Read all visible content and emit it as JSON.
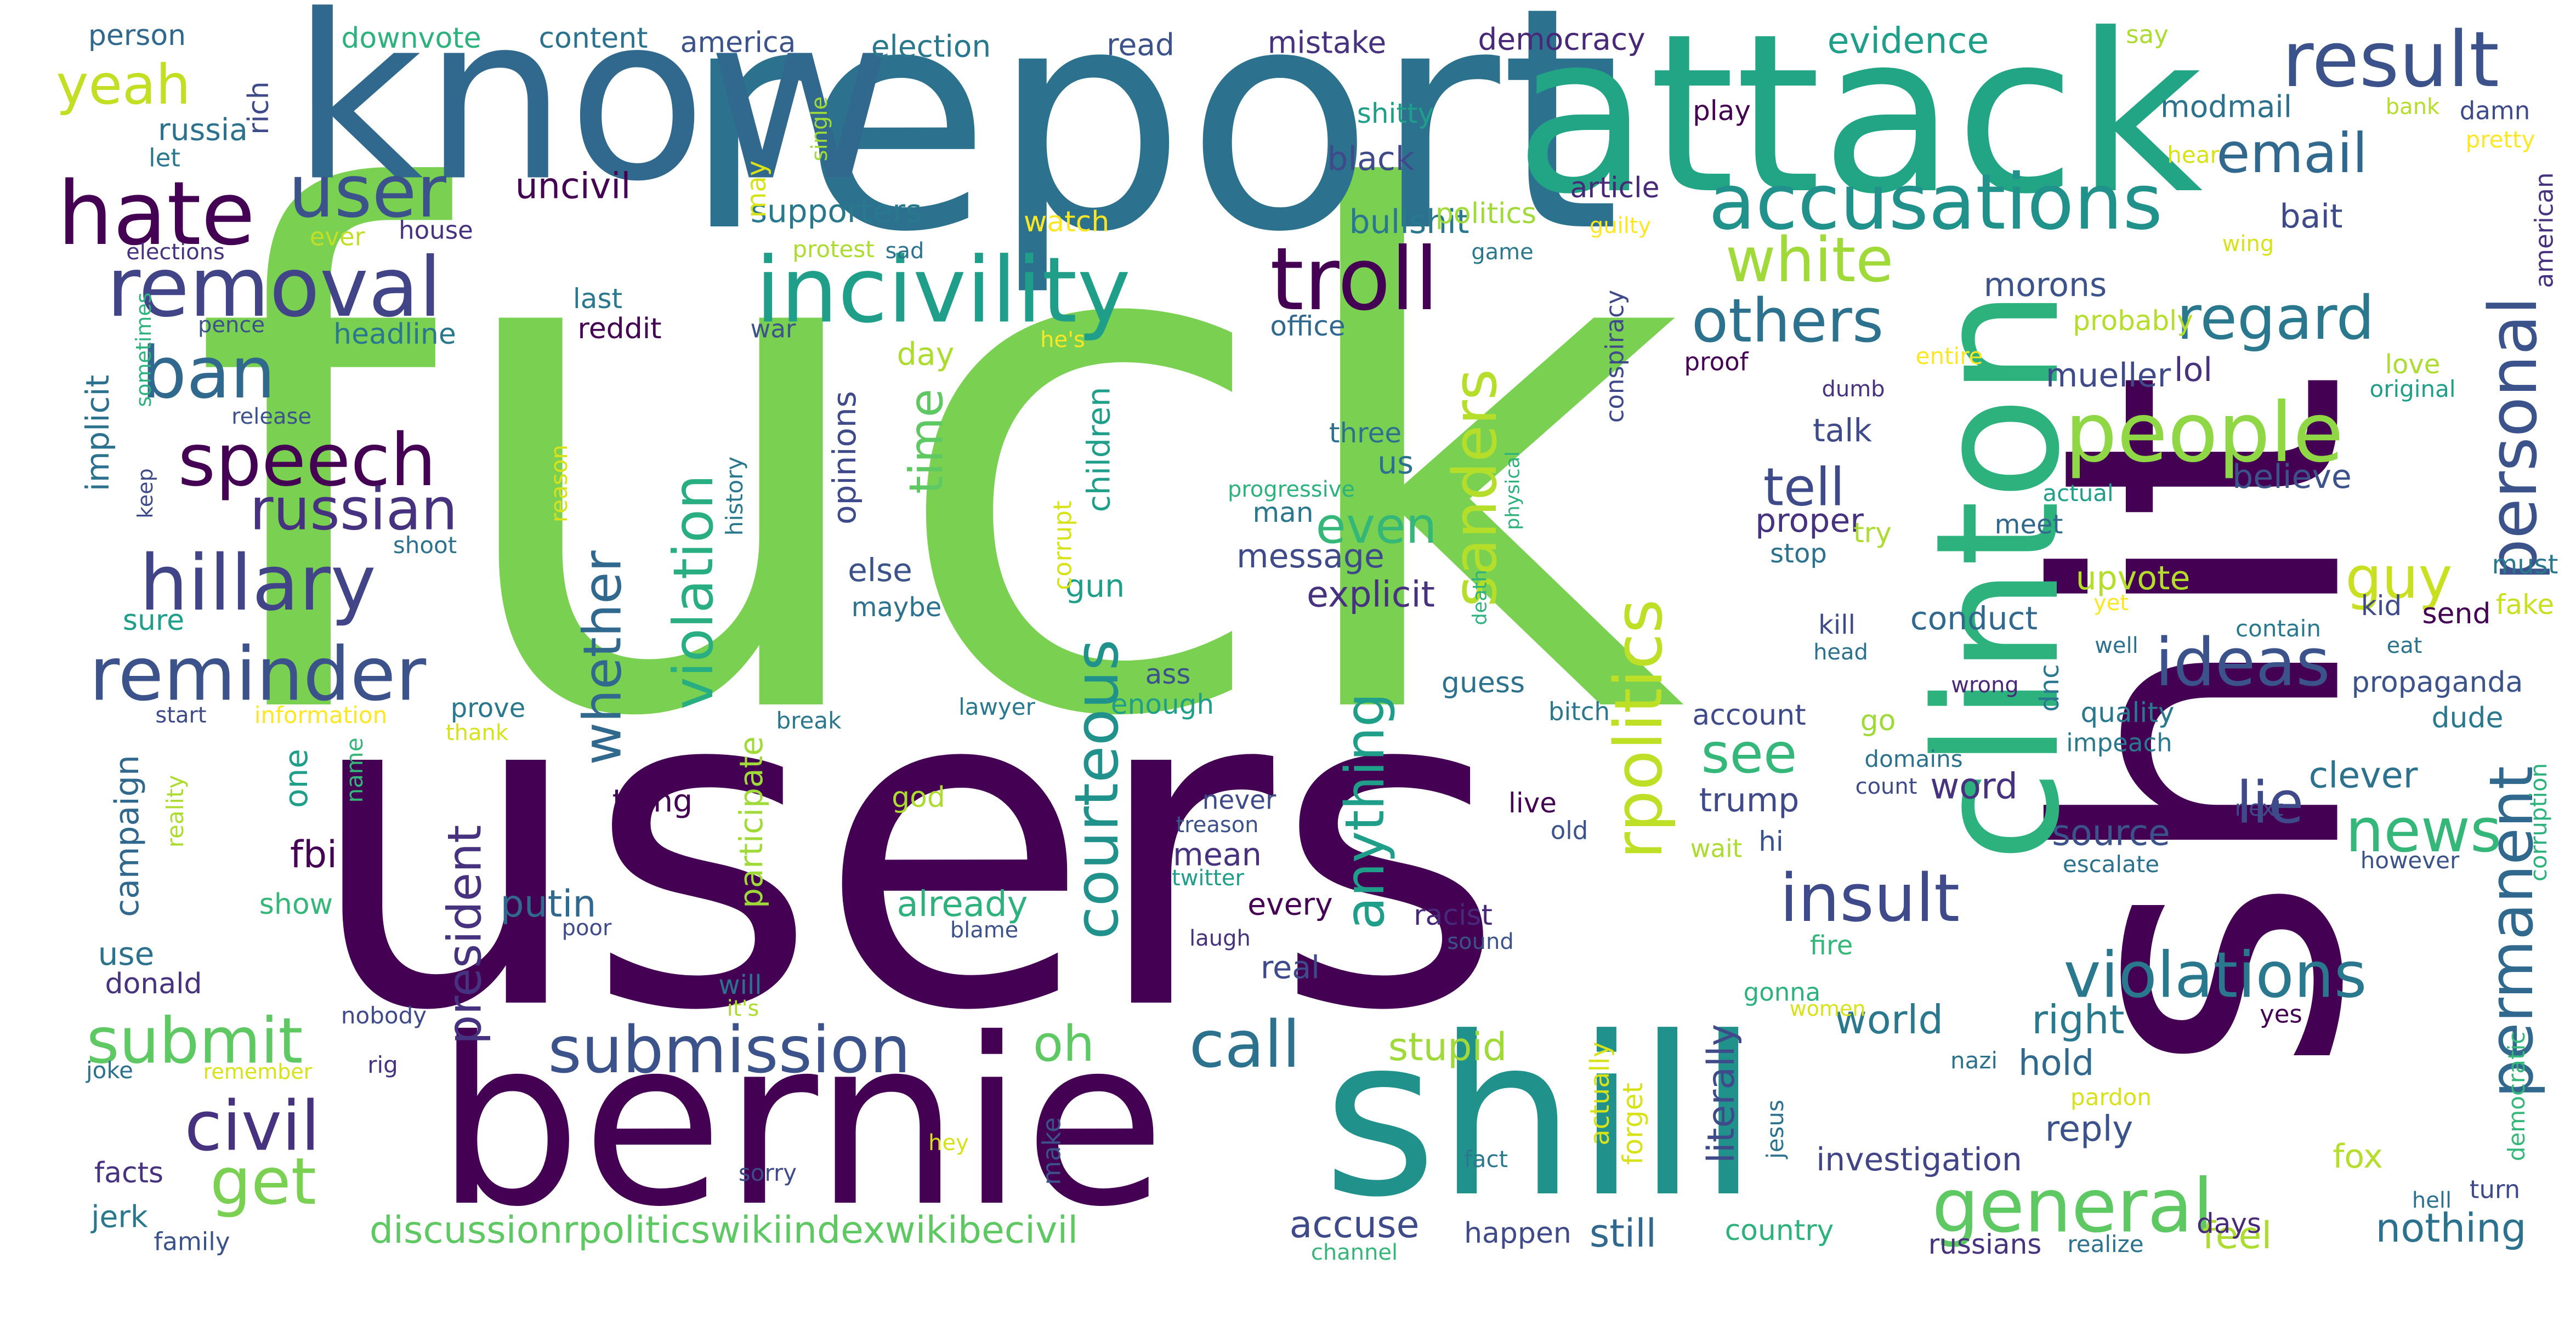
{
  "words": [
    {
      "text": "fuck",
      "color": "#7ad151"
    },
    {
      "text": "users",
      "color": "#440154"
    },
    {
      "text": "shit",
      "color": "#440154"
    },
    {
      "text": "report",
      "color": "#2c728e"
    },
    {
      "text": "know",
      "color": "#31688e"
    },
    {
      "text": "attack",
      "color": "#21a585"
    },
    {
      "text": "clinton",
      "color": "#2db27d"
    },
    {
      "text": "bernie",
      "color": "#440154"
    },
    {
      "text": "shill",
      "color": "#21918c"
    },
    {
      "text": "incivility",
      "color": "#1f9e89"
    },
    {
      "text": "troll",
      "color": "#440154"
    },
    {
      "text": "accusations",
      "color": "#21918c"
    },
    {
      "text": "result",
      "color": "#3b528b"
    },
    {
      "text": "removal",
      "color": "#414487"
    },
    {
      "text": "hate",
      "color": "#440154"
    },
    {
      "text": "user",
      "color": "#3b528b"
    },
    {
      "text": "ban",
      "color": "#31688e"
    },
    {
      "text": "speech",
      "color": "#440154"
    },
    {
      "text": "hillary",
      "color": "#414487"
    },
    {
      "text": "reminder",
      "color": "#3b528b"
    },
    {
      "text": "russian",
      "color": "#46327e"
    },
    {
      "text": "yeah",
      "color": "#c2df23"
    },
    {
      "text": "people",
      "color": "#8fd744"
    },
    {
      "text": "personal",
      "color": "#3b528b"
    },
    {
      "text": "regard",
      "color": "#2a788e"
    },
    {
      "text": "email",
      "color": "#31688e"
    },
    {
      "text": "white",
      "color": "#a0da39"
    },
    {
      "text": "others",
      "color": "#2c728e"
    },
    {
      "text": "sanders",
      "color": "#b5de2b"
    },
    {
      "text": "courteous",
      "color": "#21918c"
    },
    {
      "text": "violation",
      "color": "#28ae80"
    },
    {
      "text": "whether",
      "color": "#31688e"
    },
    {
      "text": "submission",
      "color": "#3b528b"
    },
    {
      "text": "submit",
      "color": "#5ec962"
    },
    {
      "text": "civil",
      "color": "#46327e"
    },
    {
      "text": "get",
      "color": "#7ad151"
    },
    {
      "text": "call",
      "color": "#2c728e"
    },
    {
      "text": "oh",
      "color": "#5ec962"
    },
    {
      "text": "insult",
      "color": "#3e4a89"
    },
    {
      "text": "violations",
      "color": "#2a788e"
    },
    {
      "text": "general",
      "color": "#5ec962"
    },
    {
      "text": "news",
      "color": "#35b779"
    },
    {
      "text": "ideas",
      "color": "#3b528b"
    },
    {
      "text": "guy",
      "color": "#c8e020"
    },
    {
      "text": "permanent",
      "color": "#31688e"
    },
    {
      "text": "rpolitics",
      "color": "#bddf26"
    },
    {
      "text": "lie",
      "color": "#3e4a89"
    },
    {
      "text": "see",
      "color": "#35b779"
    },
    {
      "text": "tell",
      "color": "#3e4a89"
    },
    {
      "text": "even",
      "color": "#35b779"
    },
    {
      "text": "anything",
      "color": "#1f9e89"
    },
    {
      "text": "president",
      "color": "#46327e"
    },
    {
      "text": "time",
      "color": "#5ec962"
    },
    {
      "text": "discussionrpoliticswikiindexwikibecivil",
      "color": "#5ec962"
    },
    {
      "text": "accuse",
      "color": "#3e4a89"
    },
    {
      "text": "stupid",
      "color": "#a0da39"
    },
    {
      "text": "still",
      "color": "#31688e"
    },
    {
      "text": "world",
      "color": "#2a788e"
    },
    {
      "text": "right",
      "color": "#2a788e"
    },
    {
      "text": "nothing",
      "color": "#2c728e"
    },
    {
      "text": "feel",
      "color": "#addc30"
    },
    {
      "text": "fox",
      "color": "#b5de2b"
    },
    {
      "text": "reply",
      "color": "#3b528b"
    },
    {
      "text": "investigation",
      "color": "#414487"
    },
    {
      "text": "hold",
      "color": "#31688e"
    },
    {
      "text": "literally",
      "color": "#3e4a89"
    },
    {
      "text": "putin",
      "color": "#31688e"
    },
    {
      "text": "fbi",
      "color": "#440154"
    },
    {
      "text": "already",
      "color": "#2db27d"
    },
    {
      "text": "every",
      "color": "#440154"
    },
    {
      "text": "message",
      "color": "#3e4a89"
    },
    {
      "text": "explicit",
      "color": "#46327e"
    },
    {
      "text": "trump",
      "color": "#3e4a89"
    },
    {
      "text": "source",
      "color": "#3b528b"
    },
    {
      "text": "word",
      "color": "#46327e"
    },
    {
      "text": "clever",
      "color": "#2c728e"
    },
    {
      "text": "conduct",
      "color": "#31688e"
    },
    {
      "text": "upvote",
      "color": "#b5de2b"
    },
    {
      "text": "believe",
      "color": "#3b528b"
    },
    {
      "text": "proper",
      "color": "#46327e"
    },
    {
      "text": "talk",
      "color": "#3e4a89"
    },
    {
      "text": "mueller",
      "color": "#3e4a89"
    },
    {
      "text": "lol",
      "color": "#46327e"
    },
    {
      "text": "morons",
      "color": "#3b528b"
    },
    {
      "text": "bait",
      "color": "#3e4a89"
    },
    {
      "text": "modmail",
      "color": "#2c728e"
    },
    {
      "text": "evidence",
      "color": "#1f9e89"
    },
    {
      "text": "bullshit",
      "color": "#2a788e"
    },
    {
      "text": "black",
      "color": "#3e4a89"
    },
    {
      "text": "supporters",
      "color": "#2a788e"
    },
    {
      "text": "uncivil",
      "color": "#440154"
    },
    {
      "text": "russia",
      "color": "#2c728e"
    },
    {
      "text": "implicit",
      "color": "#2c728e"
    },
    {
      "text": "campaign",
      "color": "#31688e"
    },
    {
      "text": "jerk",
      "color": "#2a788e"
    },
    {
      "text": "facts",
      "color": "#46327e"
    },
    {
      "text": "use",
      "color": "#2c728e"
    },
    {
      "text": "donald",
      "color": "#46327e"
    },
    {
      "text": "sure",
      "color": "#1f9e89"
    },
    {
      "text": "show",
      "color": "#35b779"
    },
    {
      "text": "one",
      "color": "#1f9e89"
    },
    {
      "text": "thing",
      "color": "#440154"
    },
    {
      "text": "opinions",
      "color": "#3e4a89"
    },
    {
      "text": "else",
      "color": "#3b528b"
    },
    {
      "text": "maybe",
      "color": "#2c728e"
    },
    {
      "text": "day",
      "color": "#addc30"
    },
    {
      "text": "headline",
      "color": "#2a788e"
    },
    {
      "text": "reddit",
      "color": "#440154"
    },
    {
      "text": "last",
      "color": "#2a788e"
    },
    {
      "text": "us",
      "color": "#2c728e"
    },
    {
      "text": "three",
      "color": "#2c728e"
    },
    {
      "text": "guess",
      "color": "#2c728e"
    },
    {
      "text": "racist",
      "color": "#482878"
    },
    {
      "text": "real",
      "color": "#3e4a89"
    },
    {
      "text": "god",
      "color": "#addc30"
    },
    {
      "text": "mean",
      "color": "#46327e"
    },
    {
      "text": "make",
      "color": "#3b528b"
    },
    {
      "text": "enough",
      "color": "#1f9e89"
    },
    {
      "text": "ass",
      "color": "#3b528b"
    },
    {
      "text": "never",
      "color": "#3e4a89"
    },
    {
      "text": "happen",
      "color": "#3e4a89"
    },
    {
      "text": "country",
      "color": "#2db27d"
    },
    {
      "text": "days",
      "color": "#482878"
    },
    {
      "text": "send",
      "color": "#440154"
    },
    {
      "text": "propaganda",
      "color": "#3b528b"
    },
    {
      "text": "dude",
      "color": "#2a788e"
    },
    {
      "text": "quality",
      "color": "#2a788e"
    },
    {
      "text": "kid",
      "color": "#3e4a89"
    },
    {
      "text": "fake",
      "color": "#c8e020"
    },
    {
      "text": "must",
      "color": "#2a788e"
    },
    {
      "text": "democracy",
      "color": "#482878"
    },
    {
      "text": "mistake",
      "color": "#46327e"
    },
    {
      "text": "read",
      "color": "#3b528b"
    },
    {
      "text": "election",
      "color": "#2a788e"
    },
    {
      "text": "america",
      "color": "#3b528b"
    },
    {
      "text": "content",
      "color": "#2c728e"
    },
    {
      "text": "downvote",
      "color": "#2db27d"
    },
    {
      "text": "person",
      "color": "#31688e"
    },
    {
      "text": "rich",
      "color": "#3e4a89"
    },
    {
      "text": "let",
      "color": "#2a788e"
    },
    {
      "text": "elections",
      "color": "#46327e"
    },
    {
      "text": "house",
      "color": "#46327e"
    },
    {
      "text": "ever",
      "color": "#c2df23"
    },
    {
      "text": "watch",
      "color": "#fde725"
    },
    {
      "text": "politics",
      "color": "#a0da39"
    },
    {
      "text": "article",
      "color": "#482878"
    },
    {
      "text": "play",
      "color": "#440154"
    },
    {
      "text": "shitty",
      "color": "#1f9e89"
    },
    {
      "text": "say",
      "color": "#addc30"
    },
    {
      "text": "bank",
      "color": "#b5de2b"
    },
    {
      "text": "damn",
      "color": "#3e4a89"
    },
    {
      "text": "pretty",
      "color": "#fde725"
    },
    {
      "text": "american",
      "color": "#46327e"
    },
    {
      "text": "hear",
      "color": "#d8e219"
    },
    {
      "text": "wing",
      "color": "#d8e219"
    },
    {
      "text": "guilty",
      "color": "#fde725"
    },
    {
      "text": "game",
      "color": "#2a788e"
    },
    {
      "text": "probably",
      "color": "#b5de2b"
    },
    {
      "text": "love",
      "color": "#addc30"
    },
    {
      "text": "original",
      "color": "#1f9e89"
    },
    {
      "text": "entire",
      "color": "#fde725"
    },
    {
      "text": "proof",
      "color": "#440154"
    },
    {
      "text": "dumb",
      "color": "#46327e"
    },
    {
      "text": "actual",
      "color": "#1f9e89"
    },
    {
      "text": "meet",
      "color": "#31688e"
    },
    {
      "text": "try",
      "color": "#addc30"
    },
    {
      "text": "stop",
      "color": "#2c728e"
    },
    {
      "text": "kill",
      "color": "#3e4a89"
    },
    {
      "text": "head",
      "color": "#2c728e"
    },
    {
      "text": "yet",
      "color": "#fde725"
    },
    {
      "text": "well",
      "color": "#2c728e"
    },
    {
      "text": "contain",
      "color": "#2a788e"
    },
    {
      "text": "eat",
      "color": "#2c728e"
    },
    {
      "text": "wrong",
      "color": "#482878"
    },
    {
      "text": "impeach",
      "color": "#2a788e"
    },
    {
      "text": "dnc",
      "color": "#2a788e"
    },
    {
      "text": "go",
      "color": "#a0da39"
    },
    {
      "text": "account",
      "color": "#3e4a89"
    },
    {
      "text": "domains",
      "color": "#2c728e"
    },
    {
      "text": "count",
      "color": "#3e4a89"
    },
    {
      "text": "bitch",
      "color": "#2a788e"
    },
    {
      "text": "hi",
      "color": "#3b528b"
    },
    {
      "text": "wait",
      "color": "#addc30"
    },
    {
      "text": "next",
      "color": "#3e4a89"
    },
    {
      "text": "escalate",
      "color": "#2c728e"
    },
    {
      "text": "however",
      "color": "#3b528b"
    },
    {
      "text": "corruption",
      "color": "#2db27d"
    },
    {
      "text": "fire",
      "color": "#35b779"
    },
    {
      "text": "gonna",
      "color": "#2db27d"
    },
    {
      "text": "women",
      "color": "#d8e219"
    },
    {
      "text": "yes",
      "color": "#440154"
    },
    {
      "text": "nazi",
      "color": "#2c728e"
    },
    {
      "text": "pardon",
      "color": "#d8e219"
    },
    {
      "text": "democratic",
      "color": "#35b779"
    },
    {
      "text": "turn",
      "color": "#3e4a89"
    },
    {
      "text": "hell",
      "color": "#2c728e"
    },
    {
      "text": "realize",
      "color": "#2c728e"
    },
    {
      "text": "russians",
      "color": "#46327e"
    },
    {
      "text": "channel",
      "color": "#35b779"
    },
    {
      "text": "jesus",
      "color": "#2c728e"
    },
    {
      "text": "fact",
      "color": "#2a788e"
    },
    {
      "text": "forget",
      "color": "#d8e219"
    },
    {
      "text": "actually",
      "color": "#d8e219"
    },
    {
      "text": "live",
      "color": "#440154"
    },
    {
      "text": "old",
      "color": "#3b528b"
    },
    {
      "text": "twitter",
      "color": "#1f9e89"
    },
    {
      "text": "treason",
      "color": "#3b528b"
    },
    {
      "text": "laugh",
      "color": "#46327e"
    },
    {
      "text": "sound",
      "color": "#3b528b"
    },
    {
      "text": "blame",
      "color": "#3b528b"
    },
    {
      "text": "poor",
      "color": "#3e4a89"
    },
    {
      "text": "will",
      "color": "#2c728e"
    },
    {
      "text": "it's",
      "color": "#addc30"
    },
    {
      "text": "rig",
      "color": "#46327e"
    },
    {
      "text": "nobody",
      "color": "#3e4a89"
    },
    {
      "text": "remember",
      "color": "#d8e219"
    },
    {
      "text": "joke",
      "color": "#2c728e"
    },
    {
      "text": "family",
      "color": "#3b528b"
    },
    {
      "text": "hey",
      "color": "#d8e219"
    },
    {
      "text": "sorry",
      "color": "#3e4a89"
    },
    {
      "text": "name",
      "color": "#35b779"
    },
    {
      "text": "reality",
      "color": "#addc30"
    },
    {
      "text": "participate",
      "color": "#a0da39"
    },
    {
      "text": "gun",
      "color": "#1f9e89"
    },
    {
      "text": "children",
      "color": "#1f9e89"
    },
    {
      "text": "corrupt",
      "color": "#d8e219"
    },
    {
      "text": "history",
      "color": "#2a788e"
    },
    {
      "text": "reason",
      "color": "#d8e219"
    },
    {
      "text": "war",
      "color": "#3b528b"
    },
    {
      "text": "he's",
      "color": "#fde725"
    },
    {
      "text": "office",
      "color": "#31688e"
    },
    {
      "text": "man",
      "color": "#2a788e"
    },
    {
      "text": "progressive",
      "color": "#2db27d"
    },
    {
      "text": "death",
      "color": "#2db27d"
    },
    {
      "text": "physical",
      "color": "#2db27d"
    },
    {
      "text": "conspiracy",
      "color": "#3e4a89"
    },
    {
      "text": "may",
      "color": "#d8e219"
    },
    {
      "text": "single",
      "color": "#a0da39"
    },
    {
      "text": "protest",
      "color": "#addc30"
    },
    {
      "text": "sad",
      "color": "#2c728e"
    },
    {
      "text": "sometimes",
      "color": "#2db27d"
    },
    {
      "text": "pence",
      "color": "#3b528b"
    },
    {
      "text": "release",
      "color": "#3b528b"
    },
    {
      "text": "keep",
      "color": "#3e4a89"
    },
    {
      "text": "shoot",
      "color": "#2c728e"
    },
    {
      "text": "start",
      "color": "#3e4a89"
    },
    {
      "text": "information",
      "color": "#fde725"
    },
    {
      "text": "prove",
      "color": "#2a788e"
    },
    {
      "text": "thank",
      "color": "#d8e219"
    },
    {
      "text": "break",
      "color": "#2a788e"
    },
    {
      "text": "lawyer",
      "color": "#2a788e"
    }
  ]
}
